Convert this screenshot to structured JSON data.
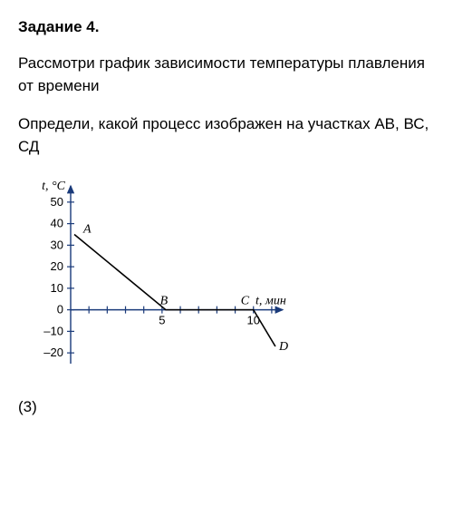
{
  "title": "Задание 4.",
  "para1": "Рассмотри график зависимости температуры плавления от времени",
  "para2": "Определи, какой процесс изображен на участках АВ, ВС, СД",
  "score": "(3)",
  "chart": {
    "type": "line",
    "y_axis_label": "t, °C",
    "x_axis_label": "t, мин",
    "y_ticks": [
      -20,
      -10,
      0,
      10,
      20,
      30,
      40,
      50
    ],
    "x_ticks_labeled": [
      5,
      10
    ],
    "x_inner_ticks": [
      1,
      2,
      3,
      4,
      5,
      6,
      7,
      8,
      9,
      10,
      11
    ],
    "xlim": [
      0,
      11.5
    ],
    "ylim": [
      -25,
      55
    ],
    "points": {
      "A": {
        "x": 0.2,
        "y": 35
      },
      "B": {
        "x": 5.2,
        "y": 0
      },
      "C": {
        "x": 10.0,
        "y": 0
      },
      "D": {
        "x": 11.2,
        "y": -17
      }
    },
    "colors": {
      "axis": "#1a3a7a",
      "line": "#000000",
      "text": "#000000",
      "background": "#ffffff"
    },
    "line_width": 1.6,
    "axis_width": 1.4
  }
}
